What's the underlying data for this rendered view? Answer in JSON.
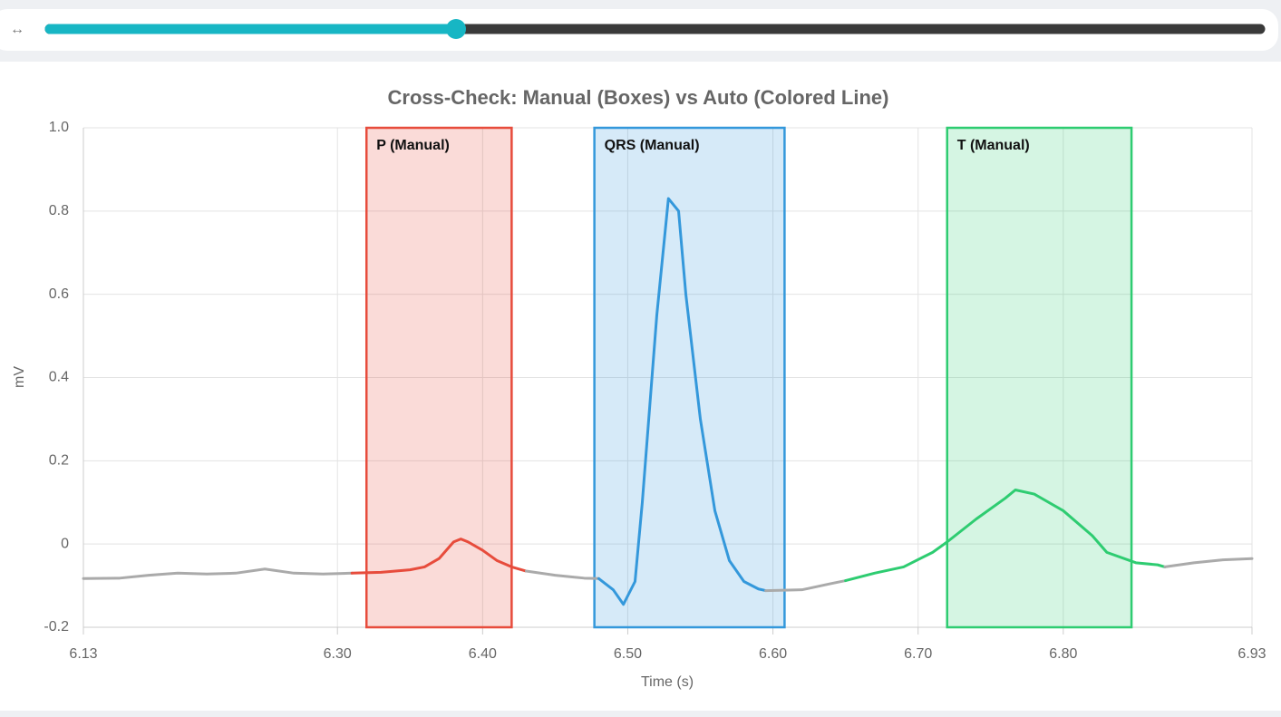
{
  "slider": {
    "icon": "↔"
  },
  "chart_data": {
    "type": "line",
    "title": "Cross-Check: Manual (Boxes) vs Auto (Colored Line)",
    "x_label": "Time (s)",
    "y_label": "mV",
    "xlim": [
      6.125,
      6.93
    ],
    "xticks": [
      {
        "value": 6.125,
        "label": "6.13"
      },
      {
        "value": 6.3,
        "label": "6.30"
      },
      {
        "value": 6.4,
        "label": "6.40"
      },
      {
        "value": 6.5,
        "label": "6.50"
      },
      {
        "value": 6.6,
        "label": "6.60"
      },
      {
        "value": 6.7,
        "label": "6.70"
      },
      {
        "value": 6.8,
        "label": "6.80"
      },
      6.93
    ],
    "ylim": [
      -0.2,
      1
    ],
    "yticks": [
      -0.2,
      0,
      0.2,
      0.4,
      0.6,
      0.8,
      {
        "value": 1,
        "label": "1.0"
      }
    ],
    "grid": true,
    "regions": [
      {
        "label": "P (Manual)",
        "color": "#e74c3c",
        "x": [
          6.32,
          6.42
        ]
      },
      {
        "label": "QRS (Manual)",
        "color": "#3498db",
        "x": [
          6.477,
          6.608
        ]
      },
      {
        "label": "T (Manual)",
        "color": "#2ecc71",
        "x": [
          6.72,
          6.847
        ]
      }
    ],
    "series": [
      {
        "color": "#aaaaaa",
        "x": [
          6.125,
          6.15,
          6.17,
          6.19,
          6.21,
          6.23,
          6.25,
          6.27,
          6.29,
          6.31
        ],
        "values": [
          -0.083,
          -0.082,
          -0.075,
          -0.07,
          -0.072,
          -0.07,
          -0.06,
          -0.07,
          -0.072,
          -0.07
        ]
      },
      {
        "color": "#e74c3c",
        "x": [
          6.31,
          6.33,
          6.35,
          6.36,
          6.37,
          6.38,
          6.385,
          6.39,
          6.4,
          6.41,
          6.42,
          6.43
        ],
        "values": [
          -0.07,
          -0.068,
          -0.062,
          -0.055,
          -0.035,
          0.005,
          0.012,
          0.005,
          -0.015,
          -0.04,
          -0.055,
          -0.065
        ]
      },
      {
        "color": "#aaaaaa",
        "x": [
          6.43,
          6.45,
          6.47,
          6.48
        ],
        "values": [
          -0.065,
          -0.075,
          -0.082,
          -0.083
        ]
      },
      {
        "color": "#3498db",
        "x": [
          6.48,
          6.49,
          6.497,
          6.505,
          6.51,
          6.52,
          6.528,
          6.535,
          6.54,
          6.55,
          6.56,
          6.57,
          6.58,
          6.59,
          6.595
        ],
        "values": [
          -0.083,
          -0.11,
          -0.145,
          -0.09,
          0.1,
          0.55,
          0.83,
          0.8,
          0.6,
          0.3,
          0.08,
          -0.04,
          -0.09,
          -0.108,
          -0.112
        ]
      },
      {
        "color": "#aaaaaa",
        "x": [
          6.595,
          6.62,
          6.64,
          6.65
        ],
        "values": [
          -0.112,
          -0.11,
          -0.095,
          -0.088
        ]
      },
      {
        "color": "#2ecc71",
        "x": [
          6.65,
          6.67,
          6.69,
          6.71,
          6.72,
          6.74,
          6.76,
          6.767,
          6.78,
          6.8,
          6.82,
          6.83,
          6.85,
          6.865,
          6.87
        ],
        "values": [
          -0.088,
          -0.07,
          -0.055,
          -0.02,
          0.005,
          0.06,
          0.11,
          0.13,
          0.12,
          0.08,
          0.02,
          -0.02,
          -0.045,
          -0.05,
          -0.055
        ]
      },
      {
        "color": "#aaaaaa",
        "x": [
          6.87,
          6.89,
          6.91,
          6.93
        ],
        "values": [
          -0.055,
          -0.045,
          -0.038,
          -0.035
        ]
      }
    ]
  }
}
